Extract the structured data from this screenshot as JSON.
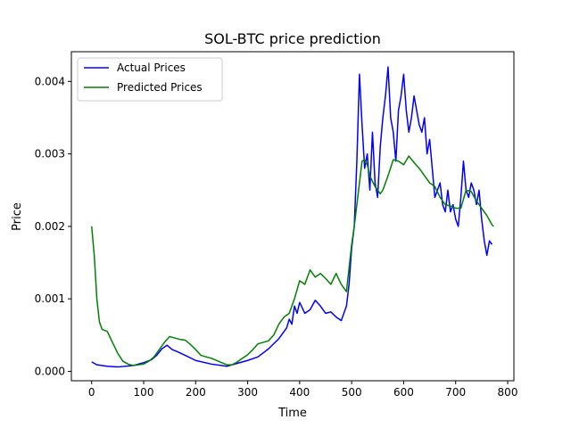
{
  "chart_data": {
    "type": "line",
    "title": "SOL-BTC price prediction",
    "xlabel": "Time",
    "ylabel": "Price",
    "xlim": [
      -39,
      812
    ],
    "ylim": [
      -0.00013,
      0.00441
    ],
    "xticks": [
      0,
      100,
      200,
      300,
      400,
      500,
      600,
      700,
      800
    ],
    "yticks": [
      0.0,
      0.001,
      0.002,
      0.003,
      0.004
    ],
    "ytick_labels": [
      "0.000",
      "0.001",
      "0.002",
      "0.003",
      "0.004"
    ],
    "legend_position": "upper left",
    "series": [
      {
        "name": "Actual Prices",
        "color": "#0000ff",
        "x": [
          0,
          10,
          30,
          50,
          80,
          100,
          115,
          125,
          135,
          145,
          155,
          165,
          180,
          200,
          230,
          260,
          280,
          300,
          320,
          340,
          360,
          375,
          380,
          385,
          390,
          395,
          400,
          410,
          420,
          430,
          440,
          450,
          460,
          470,
          480,
          490,
          495,
          500,
          505,
          510,
          515,
          520,
          525,
          530,
          535,
          540,
          545,
          550,
          555,
          560,
          565,
          570,
          575,
          580,
          585,
          590,
          595,
          600,
          605,
          610,
          615,
          620,
          625,
          630,
          635,
          640,
          645,
          650,
          655,
          660,
          665,
          670,
          675,
          680,
          685,
          690,
          695,
          700,
          705,
          710,
          715,
          720,
          725,
          730,
          735,
          740,
          745,
          750,
          755,
          760,
          765,
          770
        ],
        "y": [
          0.00013,
          9e-05,
          7e-05,
          6e-05,
          8e-05,
          0.00012,
          0.00016,
          0.00022,
          0.00031,
          0.00036,
          0.0003,
          0.00027,
          0.00022,
          0.00015,
          0.0001,
          7e-05,
          0.00011,
          0.00015,
          0.0002,
          0.00031,
          0.00045,
          0.0006,
          0.00072,
          0.00065,
          0.0009,
          0.0008,
          0.00095,
          0.0008,
          0.00085,
          0.00098,
          0.0009,
          0.0008,
          0.00082,
          0.00075,
          0.0007,
          0.0009,
          0.0012,
          0.0017,
          0.002,
          0.0029,
          0.0041,
          0.0034,
          0.0028,
          0.003,
          0.0025,
          0.0033,
          0.0026,
          0.0024,
          0.0031,
          0.0035,
          0.0038,
          0.0042,
          0.0035,
          0.0033,
          0.0029,
          0.0036,
          0.0038,
          0.0041,
          0.0036,
          0.0033,
          0.0035,
          0.0038,
          0.0036,
          0.0034,
          0.0033,
          0.0035,
          0.003,
          0.0032,
          0.0028,
          0.0024,
          0.0025,
          0.0026,
          0.0023,
          0.0022,
          0.0025,
          0.0022,
          0.0023,
          0.0021,
          0.002,
          0.0024,
          0.0029,
          0.0025,
          0.0024,
          0.0026,
          0.0025,
          0.0023,
          0.0025,
          0.0021,
          0.0018,
          0.0016,
          0.0018,
          0.00175
        ]
      },
      {
        "name": "Predicted Prices",
        "color": "#008000",
        "x": [
          0,
          5,
          10,
          15,
          20,
          30,
          40,
          50,
          60,
          70,
          80,
          90,
          100,
          110,
          120,
          130,
          140,
          150,
          160,
          170,
          180,
          190,
          200,
          210,
          220,
          230,
          240,
          250,
          260,
          270,
          280,
          290,
          300,
          310,
          320,
          330,
          340,
          350,
          360,
          370,
          380,
          390,
          400,
          410,
          420,
          430,
          440,
          450,
          460,
          470,
          480,
          490,
          500,
          505,
          510,
          515,
          520,
          525,
          530,
          535,
          540,
          545,
          550,
          555,
          560,
          570,
          580,
          590,
          600,
          610,
          620,
          630,
          640,
          650,
          660,
          670,
          680,
          690,
          700,
          710,
          720,
          730,
          740,
          750,
          760,
          770,
          773
        ],
        "y": [
          0.002,
          0.0016,
          0.001,
          0.00068,
          0.00058,
          0.00055,
          0.0004,
          0.00025,
          0.00014,
          0.0001,
          8e-05,
          9e-05,
          0.0001,
          0.00014,
          0.0002,
          0.0003,
          0.0004,
          0.00048,
          0.00046,
          0.00044,
          0.00043,
          0.00037,
          0.0003,
          0.00022,
          0.0002,
          0.00018,
          0.00015,
          0.00012,
          9e-05,
          9e-05,
          0.00013,
          0.00018,
          0.00023,
          0.0003,
          0.00038,
          0.0004,
          0.00042,
          0.0005,
          0.00065,
          0.00075,
          0.0008,
          0.001,
          0.00125,
          0.0012,
          0.0014,
          0.0013,
          0.00135,
          0.00128,
          0.0012,
          0.00135,
          0.0012,
          0.0011,
          0.00175,
          0.002,
          0.0023,
          0.0026,
          0.0029,
          0.00292,
          0.00285,
          0.0027,
          0.00262,
          0.00255,
          0.0025,
          0.00245,
          0.0025,
          0.0027,
          0.00292,
          0.0029,
          0.00285,
          0.00297,
          0.00288,
          0.0028,
          0.0027,
          0.0026,
          0.00255,
          0.0024,
          0.0023,
          0.00228,
          0.00225,
          0.00225,
          0.0025,
          0.00248,
          0.00235,
          0.00225,
          0.00215,
          0.00202,
          0.002
        ]
      }
    ]
  }
}
